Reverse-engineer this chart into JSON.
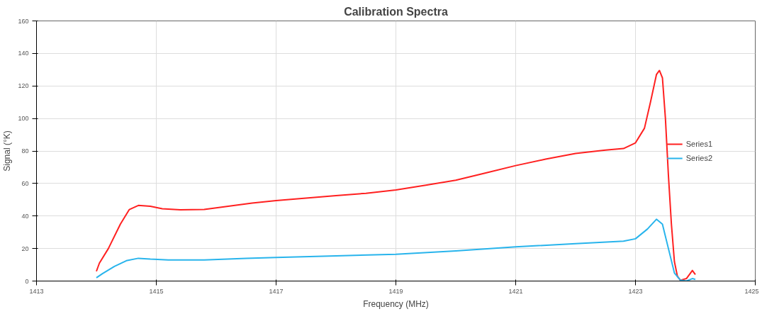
{
  "chart_data": {
    "type": "line",
    "title": "Calibration Spectra",
    "xlabel": "Frequency (MHz)",
    "ylabel": "Signal (°K)",
    "xlim": [
      1413,
      1425
    ],
    "xticks": [
      1413,
      1415,
      1417,
      1419,
      1421,
      1423,
      1425
    ],
    "ylim": [
      0,
      160
    ],
    "yticks": [
      0,
      20,
      40,
      60,
      80,
      100,
      120,
      140,
      160
    ],
    "grid": true,
    "legend": "right",
    "marker": "none",
    "line_style": "solid",
    "series": [
      {
        "name": "Series1",
        "color": "#ff2020",
        "x": [
          1414.0,
          1414.05,
          1414.2,
          1414.4,
          1414.55,
          1414.7,
          1414.9,
          1415.1,
          1415.4,
          1415.8,
          1416.2,
          1416.6,
          1417,
          1417.5,
          1418,
          1418.5,
          1419,
          1419.5,
          1420,
          1420.5,
          1421,
          1421.5,
          1422,
          1422.5,
          1422.8,
          1423,
          1423.15,
          1423.25,
          1423.35,
          1423.4,
          1423.45,
          1423.5,
          1423.55,
          1423.6,
          1423.65,
          1423.7,
          1423.75,
          1423.85,
          1423.95,
          1424.0
        ],
        "values": [
          6,
          11,
          20,
          35,
          44,
          46.5,
          46,
          44.5,
          43.8,
          44,
          46,
          48,
          49.5,
          51,
          52.5,
          54,
          56,
          59,
          62,
          66.5,
          71,
          75,
          78.5,
          80.5,
          81.5,
          85,
          94,
          110,
          127,
          129.5,
          125,
          100,
          65,
          35,
          12,
          3,
          0.5,
          1.5,
          6.5,
          4
        ]
      },
      {
        "name": "Series2",
        "color": "#28b4ec",
        "x": [
          1414.0,
          1414.1,
          1414.3,
          1414.5,
          1414.7,
          1414.9,
          1415.2,
          1415.8,
          1416.5,
          1417,
          1418,
          1419,
          1420,
          1421,
          1422,
          1422.8,
          1423,
          1423.2,
          1423.35,
          1423.45,
          1423.55,
          1423.65,
          1423.75,
          1423.85,
          1423.95,
          1424.0
        ],
        "values": [
          2,
          4.5,
          9,
          12.5,
          14,
          13.5,
          13,
          13,
          14,
          14.5,
          15.5,
          16.5,
          18.5,
          21,
          23,
          24.5,
          26,
          32,
          38,
          35,
          20,
          5,
          0.5,
          0,
          1.5,
          1
        ]
      }
    ]
  }
}
